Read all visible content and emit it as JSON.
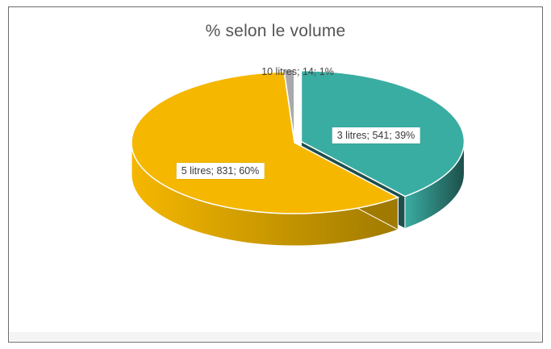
{
  "chart_data": {
    "type": "pie",
    "style": "3d-exploded",
    "title": "%  selon le volume",
    "slices": [
      {
        "category": "3 litres",
        "value": 541,
        "percent": 39,
        "label": "3 litres; 541; 39%",
        "color": "#3aada2",
        "side_color": "#1d4f4b"
      },
      {
        "category": "5 litres",
        "value": 831,
        "percent": 60,
        "label": "5 litres; 831; 60%",
        "color": "#f5b700",
        "side_color": "#a07a00"
      },
      {
        "category": "10 litres",
        "value": 14,
        "percent": 1,
        "label": "10 litres; 14; 1%",
        "color": "#a9a9a9",
        "side_color": "#6e6e6e"
      }
    ],
    "legend": "none"
  }
}
